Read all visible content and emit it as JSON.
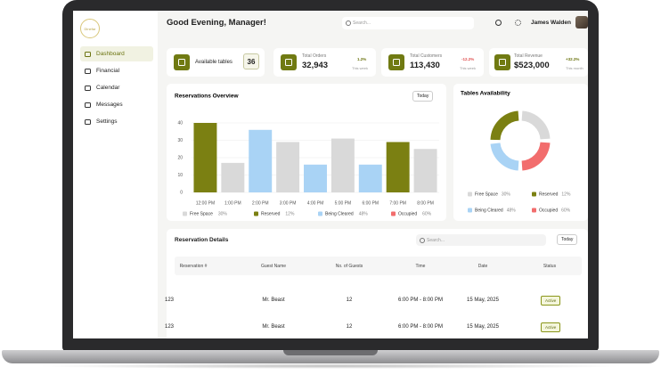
{
  "sidebar": {
    "logo": "Dinefar",
    "nav": [
      "Dashboard",
      "Financial",
      "Calendar",
      "Messages",
      "Settings"
    ]
  },
  "header": {
    "title": "Good Evening, Manager!",
    "search_placeholder": "Search...",
    "user_name": "James Walden"
  },
  "stats": [
    {
      "label": "Available tables",
      "value": "36"
    },
    {
      "label": "Total Orders",
      "value": "32,943",
      "change": "1.2%",
      "period": "This week"
    },
    {
      "label": "Total Customers",
      "value": "113,430",
      "change": "-12.2%",
      "period": "This week"
    },
    {
      "label": "Total Revenue",
      "value": "$523,000",
      "change": "+32.2%",
      "period": "This month"
    }
  ],
  "chart_data": {
    "type": "bar",
    "title": "Reservations Overview",
    "filter": "Today",
    "categories": [
      "12:00 PM",
      "1:00 PM",
      "2:00 PM",
      "3:00 PM",
      "4:00 PM",
      "5:00 PM",
      "6:00 PM",
      "7:00 PM",
      "8:00 PM"
    ],
    "values": [
      40,
      17,
      36,
      29,
      16,
      31,
      16,
      29,
      25
    ],
    "colors": [
      "#7b8012",
      "#d9d9d9",
      "#a9d3f5",
      "#d9d9d9",
      "#a9d3f5",
      "#d9d9d9",
      "#a9d3f5",
      "#7b8012",
      "#d9d9d9"
    ],
    "ylim": [
      0,
      40
    ],
    "yticks": [
      0,
      10,
      20,
      30,
      40
    ],
    "grid": true,
    "legend": [
      {
        "name": "Free Space",
        "color": "#d9d9d9",
        "label": "30%"
      },
      {
        "name": "Reserved",
        "color": "#7b8012",
        "label": "12%"
      },
      {
        "name": "Being Cleared",
        "color": "#a9d3f5",
        "label": "48%"
      },
      {
        "name": "Occupied",
        "color": "#f26d6d",
        "label": "60%"
      }
    ]
  },
  "availability": {
    "title": "Tables Availability"
  },
  "table": {
    "title": "Reservation Details",
    "search_placeholder": "Search...",
    "filter": "Today",
    "columns": [
      "Reservation #",
      "Guest Name",
      "No. of Guests",
      "Time",
      "Date",
      "Status"
    ],
    "rows": [
      [
        "123",
        "Mr. Beast",
        "12",
        "6:00 PM - 8:00 PM",
        "15 May, 2025",
        "Active"
      ],
      [
        "123",
        "Mr. Beast",
        "12",
        "6:00 PM - 8:00 PM",
        "15 May, 2025",
        "Active"
      ]
    ]
  }
}
